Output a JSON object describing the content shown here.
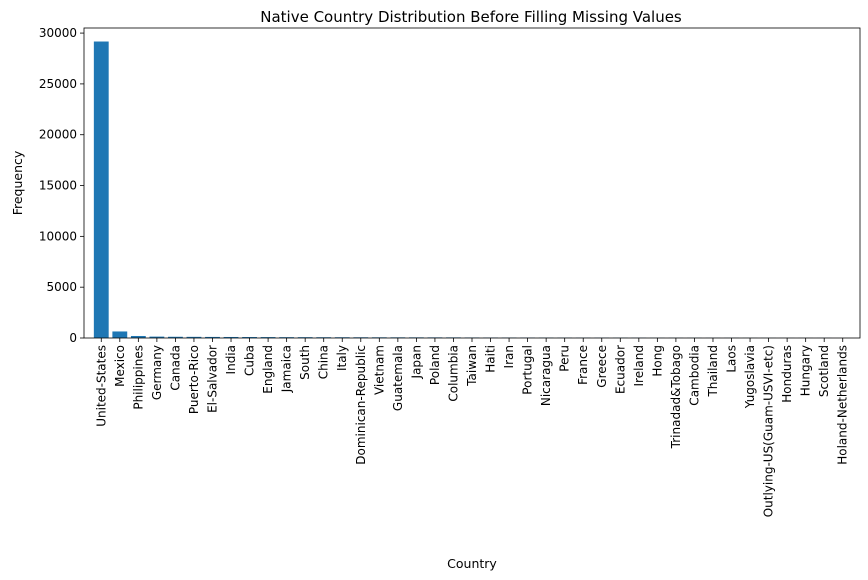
{
  "chart_data": {
    "type": "bar",
    "title": "Native Country Distribution Before Filling Missing Values",
    "xlabel": "Country",
    "ylabel": "Frequency",
    "ylim": [
      0,
      30500
    ],
    "yticks": [
      0,
      5000,
      10000,
      15000,
      20000,
      25000,
      30000
    ],
    "grid": false,
    "bar_color": "#1f77b4",
    "categories": [
      "United-States",
      "Mexico",
      "Philippines",
      "Germany",
      "Canada",
      "Puerto-Rico",
      "El-Salvador",
      "India",
      "Cuba",
      "England",
      "Jamaica",
      "South",
      "China",
      "Italy",
      "Dominican-Republic",
      "Vietnam",
      "Guatemala",
      "Japan",
      "Poland",
      "Columbia",
      "Taiwan",
      "Haiti",
      "Iran",
      "Portugal",
      "Nicaragua",
      "Peru",
      "France",
      "Greece",
      "Ecuador",
      "Ireland",
      "Hong",
      "Trinadad&Tobago",
      "Cambodia",
      "Thailand",
      "Laos",
      "Yugoslavia",
      "Outlying-US(Guam-USVI-etc)",
      "Honduras",
      "Hungary",
      "Scotland",
      "Holand-Netherlands"
    ],
    "values": [
      29170,
      643,
      198,
      137,
      121,
      114,
      106,
      100,
      95,
      90,
      81,
      80,
      75,
      73,
      70,
      67,
      64,
      62,
      60,
      59,
      51,
      44,
      43,
      37,
      34,
      31,
      29,
      29,
      28,
      24,
      20,
      19,
      19,
      18,
      18,
      16,
      14,
      13,
      13,
      12,
      1
    ]
  }
}
